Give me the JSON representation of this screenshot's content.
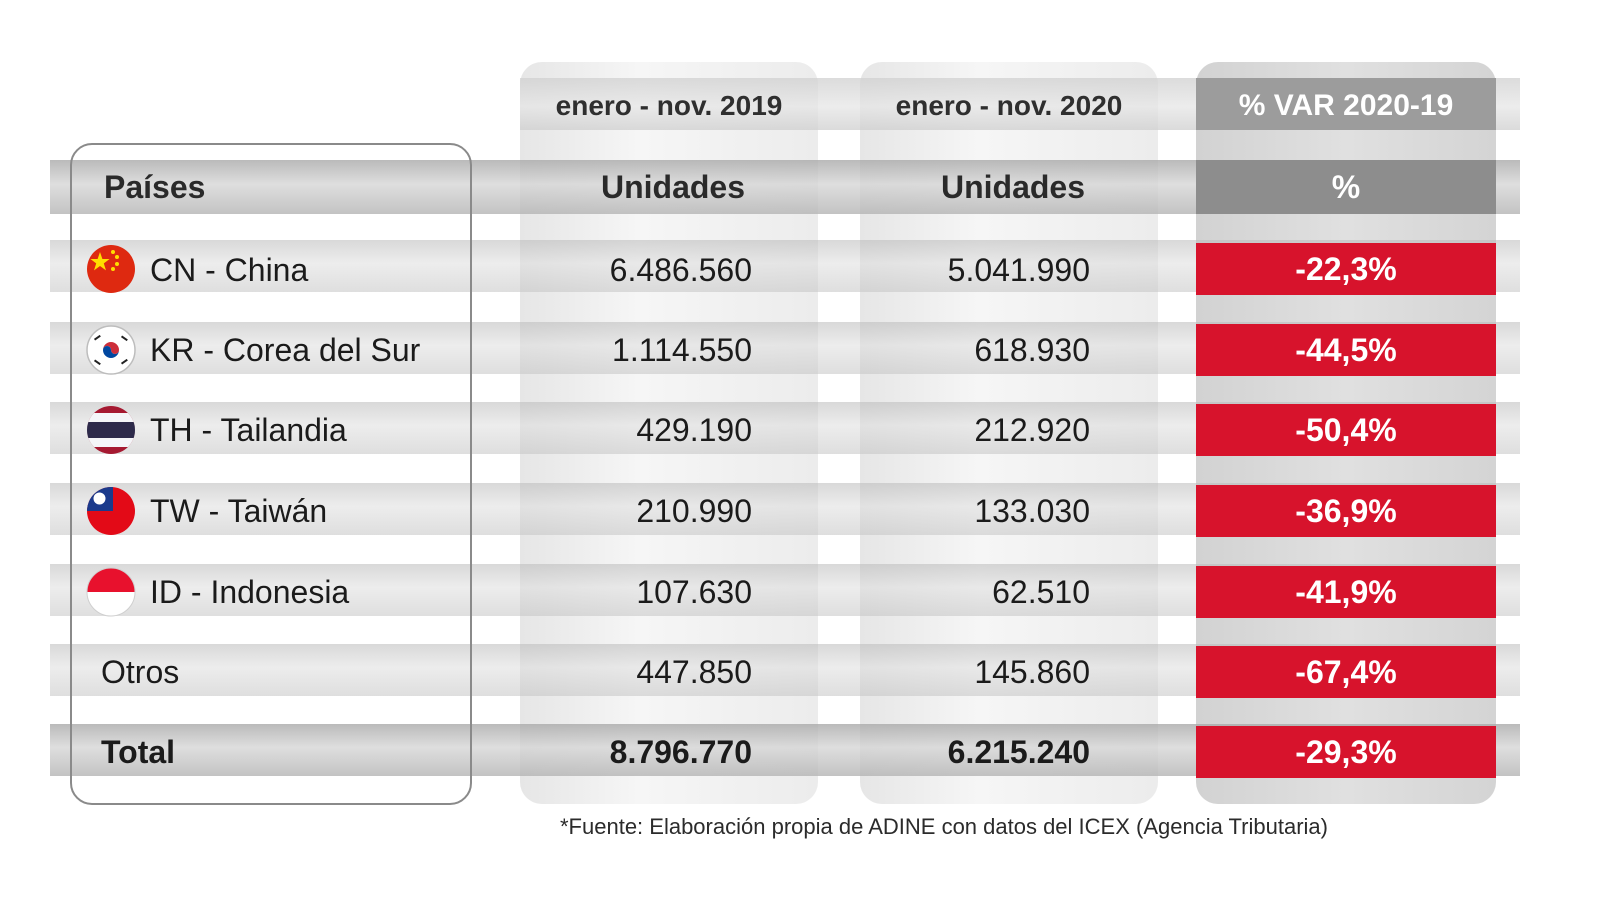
{
  "chart_data": {
    "type": "table",
    "period_headers": [
      "enero - nov. 2019",
      "enero - nov. 2020",
      "% VAR 2020-19"
    ],
    "column_headers": [
      "Países",
      "Unidades",
      "Unidades",
      "%"
    ],
    "rows": [
      {
        "code": "CN",
        "country": "CN - China",
        "u2019": "6.486.560",
        "u2020": "5.041.990",
        "var": "-22,3%"
      },
      {
        "code": "KR",
        "country": "KR - Corea del Sur",
        "u2019": "1.114.550",
        "u2020": "618.930",
        "var": "-44,5%"
      },
      {
        "code": "TH",
        "country": "TH - Tailandia",
        "u2019": "429.190",
        "u2020": "212.920",
        "var": "-50,4%"
      },
      {
        "code": "TW",
        "country": "TW - Taiwán",
        "u2019": "210.990",
        "u2020": "133.030",
        "var": "-36,9%"
      },
      {
        "code": "ID",
        "country": "ID - Indonesia",
        "u2019": "107.630",
        "u2020": "62.510",
        "var": "-41,9%"
      },
      {
        "code": "",
        "country": "Otros",
        "u2019": "447.850",
        "u2020": "145.860",
        "var": "-67,4%"
      }
    ],
    "total": {
      "country": "Total",
      "u2019": "8.796.770",
      "u2020": "6.215.240",
      "var": "-29,3%"
    },
    "footnote": "*Fuente: Elaboración propia de ADINE con datos del ICEX (Agencia Tributaria)"
  },
  "colors": {
    "negative_cell": "#d7132c",
    "header_dark": "#8d8d8d"
  }
}
